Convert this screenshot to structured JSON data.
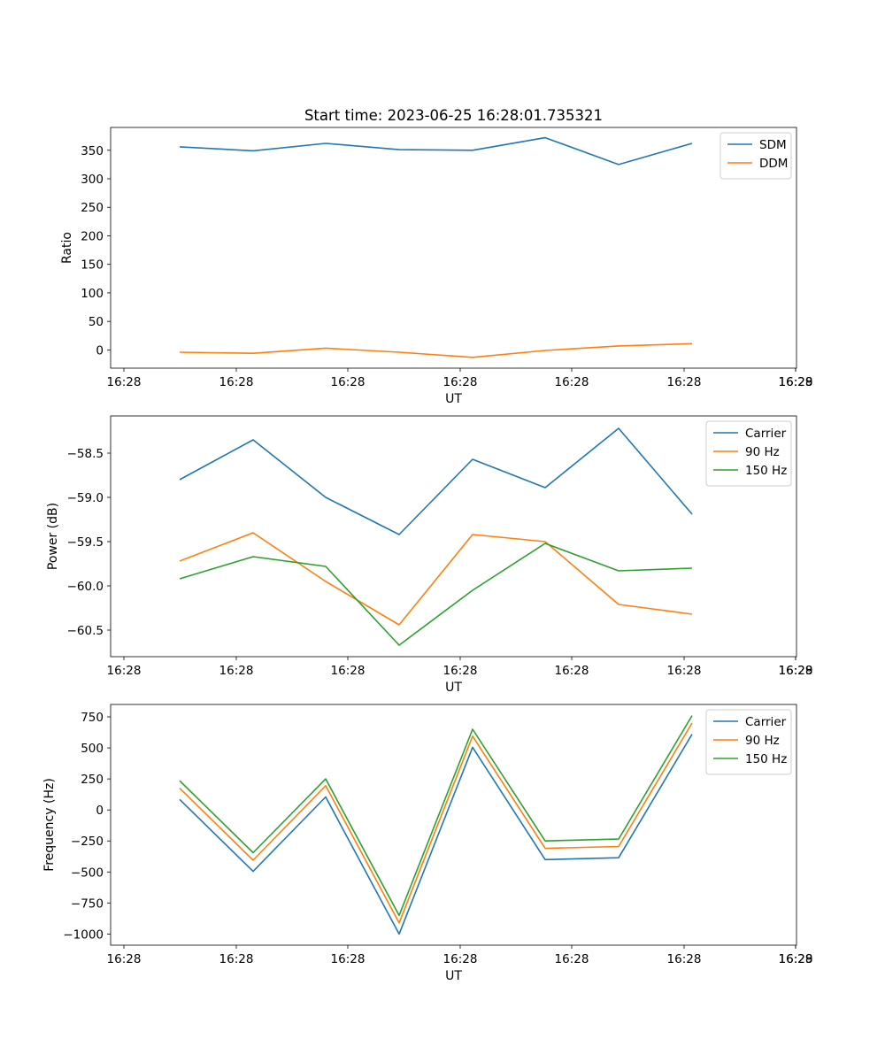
{
  "chart_data": [
    {
      "type": "line",
      "title": "Start time: 2023-06-25 16:28:01.735321",
      "xlabel": "UT",
      "ylabel": "Ratio",
      "x_tick_labels": [
        "16:28",
        "16:28",
        "16:28",
        "16:28",
        "16:28",
        "16:28",
        "16:28",
        "16:29"
      ],
      "y_ticks": [
        0,
        50,
        100,
        150,
        200,
        250,
        300,
        350
      ],
      "ylim": [
        -32,
        390
      ],
      "legend": "top-right",
      "series": [
        {
          "name": "SDM",
          "color": "#1f77b4",
          "values": [
            356,
            349,
            362,
            351,
            350,
            372,
            325,
            362
          ]
        },
        {
          "name": "DDM",
          "color": "#ff7f0e",
          "values": [
            -4,
            -6,
            3,
            -4,
            -13,
            -1,
            7,
            11
          ]
        }
      ]
    },
    {
      "type": "line",
      "title": "",
      "xlabel": "UT",
      "ylabel": "Power (dB)",
      "x_tick_labels": [
        "16:28",
        "16:28",
        "16:28",
        "16:28",
        "16:28",
        "16:28",
        "16:28",
        "16:29"
      ],
      "y_ticks": [
        -60.5,
        -60.0,
        -59.5,
        -59.0,
        -58.5
      ],
      "y_tick_labels": [
        "−60.5",
        "−60.0",
        "−59.5",
        "−59.0",
        "−58.5"
      ],
      "ylim": [
        -60.8,
        -58.08
      ],
      "legend": "top-right",
      "series": [
        {
          "name": "Carrier",
          "color": "#1f77b4",
          "values": [
            -58.8,
            -58.35,
            -59.0,
            -59.42,
            -58.57,
            -58.89,
            -58.22,
            -59.19
          ]
        },
        {
          "name": "90 Hz",
          "color": "#ff7f0e",
          "values": [
            -59.72,
            -59.4,
            -59.95,
            -60.44,
            -59.42,
            -59.5,
            -60.21,
            -60.32
          ]
        },
        {
          "name": "150 Hz",
          "color": "#2ca02c",
          "values": [
            -59.92,
            -59.67,
            -59.78,
            -60.67,
            -60.05,
            -59.52,
            -59.83,
            -59.8
          ]
        }
      ]
    },
    {
      "type": "line",
      "title": "",
      "xlabel": "UT",
      "ylabel": "Frequency (Hz)",
      "x_tick_labels": [
        "16:28",
        "16:28",
        "16:28",
        "16:28",
        "16:28",
        "16:28",
        "16:28",
        "16:29"
      ],
      "y_ticks": [
        -1000,
        -750,
        -500,
        -250,
        0,
        250,
        500,
        750
      ],
      "y_tick_labels": [
        "−1000",
        "−750",
        "−500",
        "−250",
        "0",
        "250",
        "500",
        "750"
      ],
      "ylim": [
        -1090,
        850
      ],
      "legend": "top-right",
      "series": [
        {
          "name": "Carrier",
          "color": "#1f77b4",
          "values": [
            85,
            -495,
            105,
            -1000,
            505,
            -400,
            -385,
            610
          ]
        },
        {
          "name": "90 Hz",
          "color": "#ff7f0e",
          "values": [
            175,
            -405,
            195,
            -910,
            595,
            -310,
            -295,
            700
          ]
        },
        {
          "name": "150 Hz",
          "color": "#2ca02c",
          "values": [
            235,
            -345,
            250,
            -850,
            650,
            -250,
            -235,
            760
          ]
        }
      ]
    }
  ]
}
